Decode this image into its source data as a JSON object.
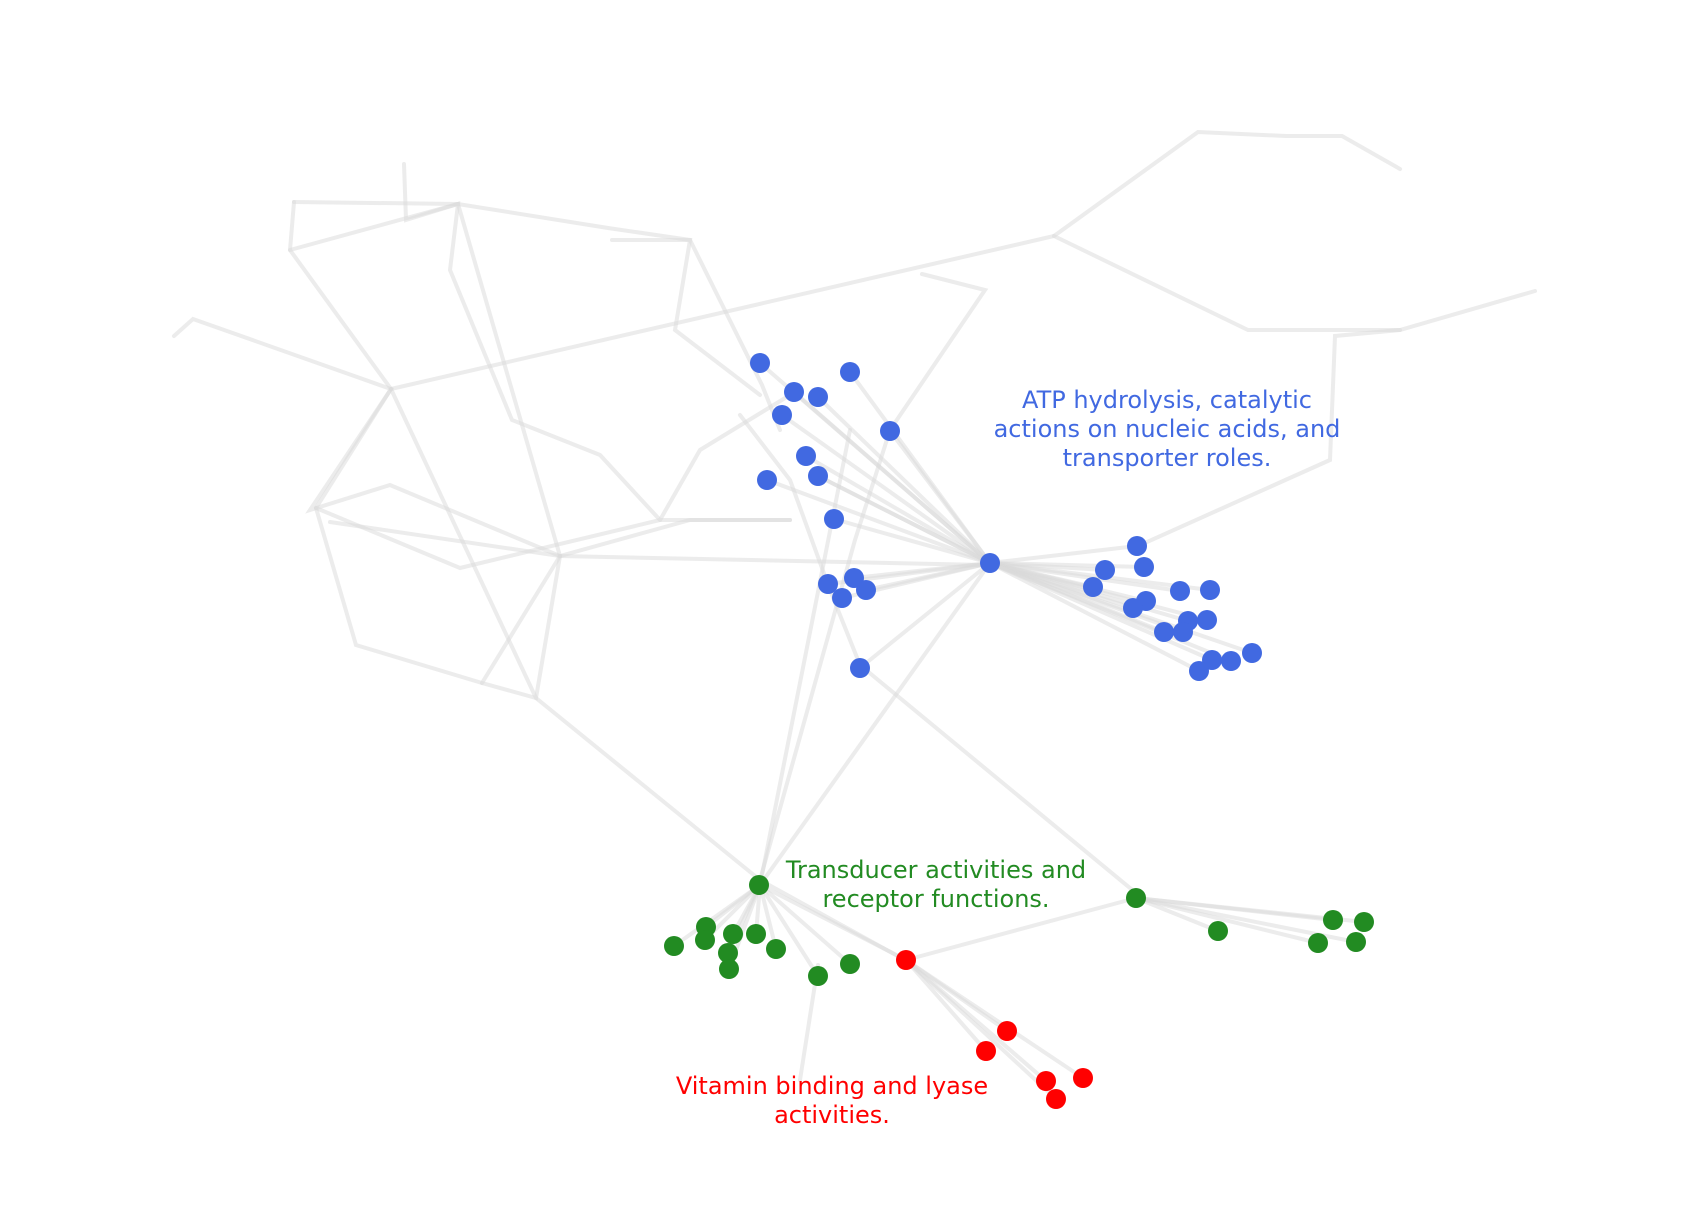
{
  "colors": {
    "edge": "#d9d9d9",
    "atp_group": "#4169e1",
    "transducer_group": "#228b22",
    "vitamin_group": "#ff0000"
  },
  "annotations": {
    "atp": {
      "lines": [
        "ATP hydrolysis, catalytic",
        "actions on nucleic acids, and",
        "transporter roles."
      ],
      "color": "#4169e1"
    },
    "transducer": {
      "lines": [
        "Transducer activities and",
        "receptor functions."
      ],
      "color": "#228b22"
    },
    "vitamin": {
      "lines": [
        "Vitamin binding and lyase",
        "activities."
      ],
      "color": "#ff0000"
    }
  }
}
